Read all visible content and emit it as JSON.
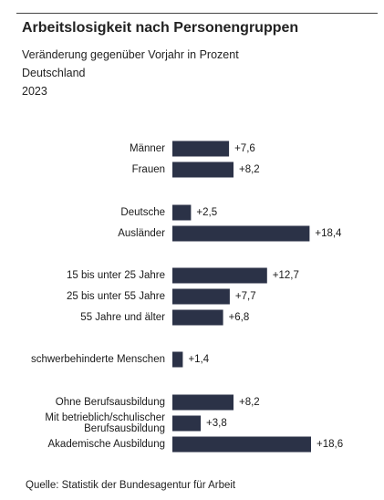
{
  "header": {
    "title": "Arbeitslosigkeit nach Personengruppen",
    "subtitle_lines": [
      "Veränderung gegenüber Vorjahr in Prozent",
      "Deutschland",
      "2023"
    ]
  },
  "source": "Quelle: Statistik der Bundesagentur für Arbeit",
  "colors": {
    "bar": "#2b3247",
    "text": "#1a1a1a"
  },
  "chart_data": {
    "type": "bar",
    "orientation": "horizontal",
    "title": "Arbeitslosigkeit nach Personengruppen",
    "subtitle": "Veränderung gegenüber Vorjahr in Prozent",
    "xlim": [
      0,
      18.6
    ],
    "grid": false,
    "data_labels": true,
    "bars": [
      {
        "label": [
          "Männer"
        ],
        "value": 7.6,
        "value_label": "+7,6",
        "group": 1
      },
      {
        "label": [
          "Frauen"
        ],
        "value": 8.2,
        "value_label": "+8,2",
        "group": 1
      },
      {
        "label": [
          "Deutsche"
        ],
        "value": 2.5,
        "value_label": "+2,5",
        "group": 2
      },
      {
        "label": [
          "Ausländer"
        ],
        "value": 18.4,
        "value_label": "+18,4",
        "group": 2
      },
      {
        "label": [
          "15 bis unter 25 Jahre"
        ],
        "value": 12.7,
        "value_label": "+12,7",
        "group": 3
      },
      {
        "label": [
          "25 bis unter 55 Jahre"
        ],
        "value": 7.7,
        "value_label": "+7,7",
        "group": 3
      },
      {
        "label": [
          "55 Jahre und älter"
        ],
        "value": 6.8,
        "value_label": "+6,8",
        "group": 3
      },
      {
        "label": [
          "schwerbehinderte Menschen"
        ],
        "value": 1.4,
        "value_label": "+1,4",
        "group": 4
      },
      {
        "label": [
          "Ohne Berufsausbildung"
        ],
        "value": 8.2,
        "value_label": "+8,2",
        "group": 5
      },
      {
        "label": [
          "Mit betrieblich/schulischer",
          "Berufsausbildung"
        ],
        "value": 3.8,
        "value_label": "+3,8",
        "group": 5
      },
      {
        "label": [
          "Akademische Ausbildung"
        ],
        "value": 18.6,
        "value_label": "+18,6",
        "group": 5
      }
    ]
  }
}
